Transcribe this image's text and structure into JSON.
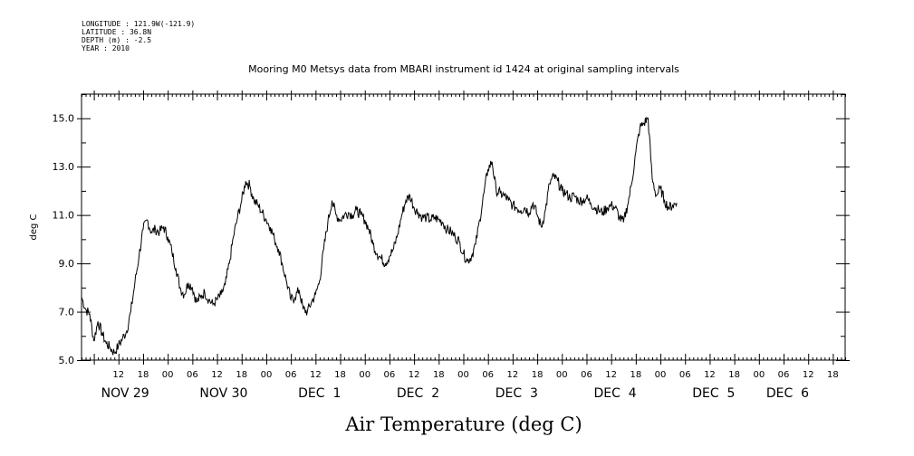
{
  "header": {
    "longitude": "LONGITUDE : 121.9W(-121.9)",
    "latitude": "LATITUDE : 36.8N",
    "depth": "DEPTH (m) : -2.5",
    "year": "YEAR : 2010"
  },
  "chart_data": {
    "type": "line",
    "title": "Mooring M0 Metsys data from MBARI instrument id 1424 at original sampling intervals",
    "xlabel": "Air Temperature (deg C)",
    "ylabel": "deg C",
    "ylim": [
      5.0,
      16.0
    ],
    "yticks": [
      "5.0",
      "7.0",
      "9.0",
      "11.0",
      "13.0",
      "15.0"
    ],
    "xlim_hours": [
      0,
      186
    ],
    "x_hour_labels": [
      {
        "h": 9,
        "label": "12"
      },
      {
        "h": 15,
        "label": "18"
      },
      {
        "h": 21,
        "label": "00"
      },
      {
        "h": 27,
        "label": "06"
      },
      {
        "h": 33,
        "label": "12"
      },
      {
        "h": 39,
        "label": "18"
      },
      {
        "h": 45,
        "label": "00"
      },
      {
        "h": 51,
        "label": "06"
      },
      {
        "h": 57,
        "label": "12"
      },
      {
        "h": 63,
        "label": "18"
      },
      {
        "h": 69,
        "label": "00"
      },
      {
        "h": 75,
        "label": "06"
      },
      {
        "h": 81,
        "label": "12"
      },
      {
        "h": 87,
        "label": "18"
      },
      {
        "h": 93,
        "label": "00"
      },
      {
        "h": 99,
        "label": "06"
      },
      {
        "h": 105,
        "label": "12"
      },
      {
        "h": 111,
        "label": "18"
      },
      {
        "h": 117,
        "label": "00"
      },
      {
        "h": 123,
        "label": "06"
      },
      {
        "h": 129,
        "label": "12"
      },
      {
        "h": 135,
        "label": "18"
      },
      {
        "h": 141,
        "label": "00"
      },
      {
        "h": 147,
        "label": "06"
      },
      {
        "h": 153,
        "label": "12"
      },
      {
        "h": 159,
        "label": "18"
      },
      {
        "h": 165,
        "label": "00"
      },
      {
        "h": 171,
        "label": "06"
      },
      {
        "h": 177,
        "label": "12"
      },
      {
        "h": 183,
        "label": "18"
      }
    ],
    "day_labels": [
      {
        "h": 3,
        "label": "NOV 29"
      },
      {
        "h": 27,
        "label": "NOV 30"
      },
      {
        "h": 51,
        "label": "DEC  1"
      },
      {
        "h": 75,
        "label": "DEC  2"
      },
      {
        "h": 99,
        "label": "DEC  3"
      },
      {
        "h": 123,
        "label": "DEC  4"
      },
      {
        "h": 147,
        "label": "DEC  5"
      },
      {
        "h": 165,
        "label": "DEC  6"
      }
    ],
    "series": [
      {
        "color": "#000000",
        "points": [
          [
            0,
            7.6
          ],
          [
            1,
            7.1
          ],
          [
            2,
            6.9
          ],
          [
            3,
            5.8
          ],
          [
            4,
            6.6
          ],
          [
            5,
            6.1
          ],
          [
            6,
            5.7
          ],
          [
            7,
            5.5
          ],
          [
            8,
            5.3
          ],
          [
            9,
            5.6
          ],
          [
            10,
            5.9
          ],
          [
            11,
            6.2
          ],
          [
            12,
            7.0
          ],
          [
            13,
            8.2
          ],
          [
            14,
            9.3
          ],
          [
            15,
            10.4
          ],
          [
            16,
            10.8
          ],
          [
            17,
            10.3
          ],
          [
            18,
            10.4
          ],
          [
            19,
            10.3
          ],
          [
            20,
            10.5
          ],
          [
            21,
            10.1
          ],
          [
            22,
            9.5
          ],
          [
            23,
            8.8
          ],
          [
            24,
            8.0
          ],
          [
            25,
            7.7
          ],
          [
            26,
            8.2
          ],
          [
            27,
            8.0
          ],
          [
            28,
            7.4
          ],
          [
            29,
            7.6
          ],
          [
            30,
            7.8
          ],
          [
            31,
            7.5
          ],
          [
            32,
            7.3
          ],
          [
            33,
            7.5
          ],
          [
            34,
            7.7
          ],
          [
            35,
            8.1
          ],
          [
            36,
            9.0
          ],
          [
            37,
            10.1
          ],
          [
            38,
            10.9
          ],
          [
            39,
            11.6
          ],
          [
            40,
            12.4
          ],
          [
            41,
            12.2
          ],
          [
            42,
            11.6
          ],
          [
            43,
            11.4
          ],
          [
            44,
            11.1
          ],
          [
            45,
            10.8
          ],
          [
            46,
            10.5
          ],
          [
            47,
            10.0
          ],
          [
            48,
            9.6
          ],
          [
            49,
            8.9
          ],
          [
            50,
            8.2
          ],
          [
            51,
            7.5
          ],
          [
            52,
            7.6
          ],
          [
            53,
            7.9
          ],
          [
            54,
            7.1
          ],
          [
            55,
            7.0
          ],
          [
            56,
            7.4
          ],
          [
            57,
            7.7
          ],
          [
            58,
            8.3
          ],
          [
            59,
            9.6
          ],
          [
            60,
            10.7
          ],
          [
            61,
            11.6
          ],
          [
            62,
            11.0
          ],
          [
            63,
            10.8
          ],
          [
            64,
            11.0
          ],
          [
            65,
            11.1
          ],
          [
            66,
            11.0
          ],
          [
            67,
            11.2
          ],
          [
            68,
            11.0
          ],
          [
            69,
            10.8
          ],
          [
            70,
            10.4
          ],
          [
            71,
            9.8
          ],
          [
            72,
            9.4
          ],
          [
            73,
            9.2
          ],
          [
            74,
            9.0
          ],
          [
            75,
            9.3
          ],
          [
            76,
            9.6
          ],
          [
            77,
            10.2
          ],
          [
            78,
            11.0
          ],
          [
            79,
            11.6
          ],
          [
            80,
            11.8
          ],
          [
            81,
            11.3
          ],
          [
            82,
            11.1
          ],
          [
            83,
            10.9
          ],
          [
            84,
            10.9
          ],
          [
            85,
            10.8
          ],
          [
            86,
            10.9
          ],
          [
            87,
            10.8
          ],
          [
            88,
            10.7
          ],
          [
            89,
            10.4
          ],
          [
            90,
            10.3
          ],
          [
            91,
            10.1
          ],
          [
            92,
            9.9
          ],
          [
            93,
            9.4
          ],
          [
            94,
            9.1
          ],
          [
            95,
            9.3
          ],
          [
            96,
            9.8
          ],
          [
            97,
            10.8
          ],
          [
            98,
            11.9
          ],
          [
            99,
            12.9
          ],
          [
            100,
            13.2
          ],
          [
            101,
            12.0
          ],
          [
            102,
            11.9
          ],
          [
            103,
            11.8
          ],
          [
            104,
            11.6
          ],
          [
            105,
            11.4
          ],
          [
            106,
            11.3
          ],
          [
            107,
            11.2
          ],
          [
            108,
            11.3
          ],
          [
            109,
            11.1
          ],
          [
            110,
            11.5
          ],
          [
            111,
            11.0
          ],
          [
            112,
            10.5
          ],
          [
            113,
            11.2
          ],
          [
            114,
            12.3
          ],
          [
            115,
            12.6
          ],
          [
            116,
            12.4
          ],
          [
            117,
            12.0
          ],
          [
            118,
            11.9
          ],
          [
            119,
            11.7
          ],
          [
            120,
            11.8
          ],
          [
            121,
            11.6
          ],
          [
            122,
            11.6
          ],
          [
            123,
            11.7
          ],
          [
            124,
            11.5
          ],
          [
            125,
            11.3
          ],
          [
            126,
            11.2
          ],
          [
            127,
            11.1
          ],
          [
            128,
            11.3
          ],
          [
            129,
            11.4
          ],
          [
            130,
            11.3
          ],
          [
            131,
            10.9
          ],
          [
            132,
            10.7
          ],
          [
            133,
            11.4
          ],
          [
            134,
            12.3
          ],
          [
            135,
            13.6
          ],
          [
            136,
            14.6
          ],
          [
            137,
            14.8
          ],
          [
            138,
            15.0
          ],
          [
            139,
            12.5
          ],
          [
            140,
            11.8
          ],
          [
            141,
            12.1
          ],
          [
            142,
            11.6
          ],
          [
            143,
            11.3
          ],
          [
            144,
            11.4
          ],
          [
            145,
            11.5
          ]
        ]
      }
    ]
  }
}
